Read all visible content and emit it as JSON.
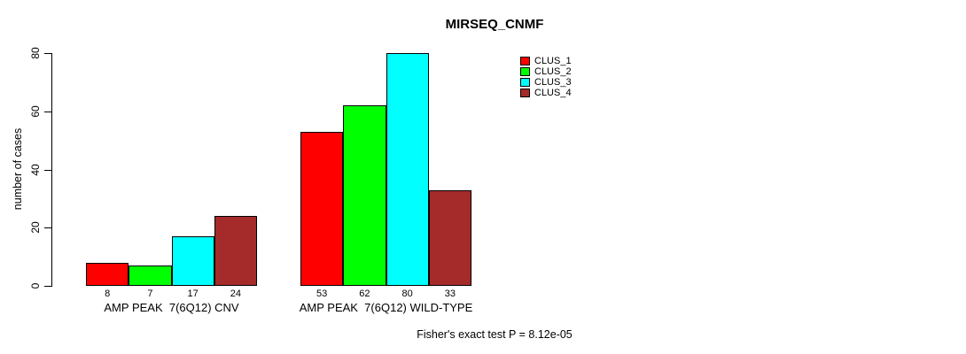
{
  "title": "MIRSEQ_CNMF",
  "footer_annotation": "Fisher's exact test P = 8.12e-05",
  "chart_data": {
    "type": "bar",
    "title": "MIRSEQ_CNMF",
    "xlabel": "",
    "ylabel": "number of cases",
    "ylim": [
      0,
      80
    ],
    "yticks": [
      0,
      20,
      40,
      60,
      80
    ],
    "grid": false,
    "legend_position": "upper-right",
    "categories": [
      "AMP PEAK  7(6Q12) CNV",
      "AMP PEAK  7(6Q12) WILD-TYPE"
    ],
    "series": [
      {
        "name": "CLUS_1",
        "color": "#ff0000",
        "values": [
          8,
          53
        ]
      },
      {
        "name": "CLUS_2",
        "color": "#00ff00",
        "values": [
          7,
          62
        ]
      },
      {
        "name": "CLUS_3",
        "color": "#00ffff",
        "values": [
          17,
          80
        ]
      },
      {
        "name": "CLUS_4",
        "color": "#a52a2a",
        "values": [
          24,
          33
        ]
      }
    ],
    "bar_value_labels": [
      [
        8,
        7,
        17,
        24
      ],
      [
        53,
        62,
        80,
        33
      ]
    ],
    "annotation": "Fisher's exact test P = 8.12e-05"
  }
}
